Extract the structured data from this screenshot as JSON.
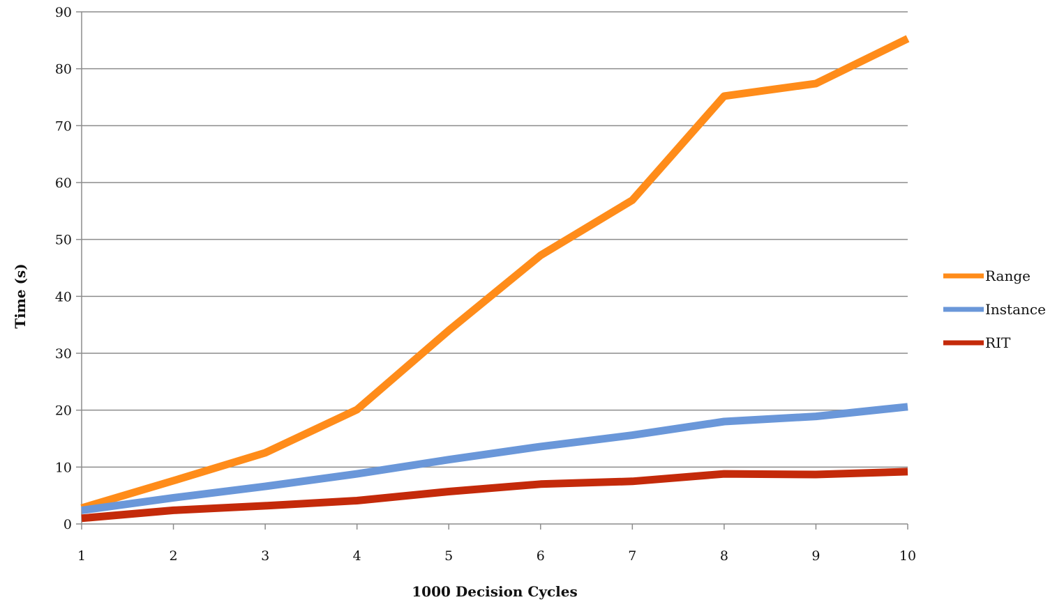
{
  "chart_data": {
    "type": "line",
    "title": "",
    "xlabel": "1000 Decision Cycles",
    "ylabel": "Time (s)",
    "x": [
      1,
      2,
      3,
      4,
      5,
      6,
      7,
      8,
      9,
      10
    ],
    "xticks": [
      "1",
      "2",
      "3",
      "4",
      "5",
      "6",
      "7",
      "8",
      "9",
      "10"
    ],
    "yticks": [
      "0",
      "10",
      "20",
      "30",
      "40",
      "50",
      "60",
      "70",
      "80",
      "90"
    ],
    "ylim": [
      0,
      90
    ],
    "xlim": [
      1,
      10
    ],
    "grid": "horizontal",
    "legend_position": "right",
    "series": [
      {
        "name": "Range",
        "color": "#FF8C1A",
        "values": [
          2.8,
          7.6,
          12.5,
          20.1,
          34.0,
          47.2,
          56.9,
          75.2,
          77.4,
          85.3
        ]
      },
      {
        "name": "Instance",
        "color": "#6A97D9",
        "values": [
          2.4,
          4.6,
          6.6,
          8.8,
          11.3,
          13.6,
          15.6,
          18.0,
          18.9,
          20.6
        ]
      },
      {
        "name": "RIT",
        "color": "#C42A0A",
        "values": [
          1.0,
          2.4,
          3.2,
          4.1,
          5.7,
          7.0,
          7.5,
          8.8,
          8.7,
          9.2
        ]
      }
    ]
  }
}
